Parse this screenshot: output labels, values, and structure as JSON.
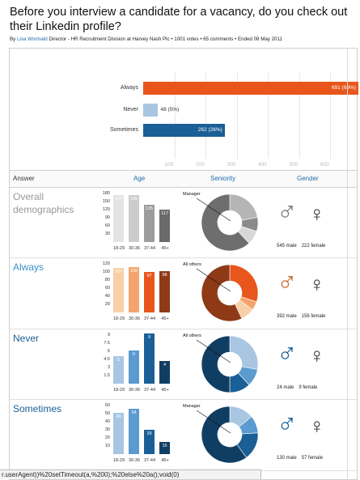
{
  "header": {
    "title": "Before you interview a candidate for a vacancy, do you check out their Linkedin profile?",
    "by": "By",
    "author": "Lisa Wormald",
    "role": "Director - HR Recruitment Division at Harvey Nash Plc",
    "votes": "1001 votes",
    "comments": "65 comments",
    "ended": "Ended 08 May 2011",
    "sep": "•"
  },
  "results": {
    "rows": [
      {
        "label": "Always",
        "votes": 691,
        "text": "691 (69%)",
        "color": "#e8561b"
      },
      {
        "label": "Never",
        "votes": 48,
        "text": "48 (5%)",
        "color": "#a8c6e2"
      },
      {
        "label": "Sometimes",
        "votes": 262,
        "text": "262 (26%)",
        "color": "#1a5f96"
      }
    ],
    "ticks": [
      "100",
      "200",
      "300",
      "400",
      "500",
      "600"
    ]
  },
  "columns": {
    "answer": "Answer",
    "age": "Age",
    "seniority": "Seniority",
    "gender": "Gender"
  },
  "sections": [
    {
      "title": "Overall demographics",
      "color": "#999999",
      "yticks": [
        "180",
        "150",
        "120",
        "90",
        "60",
        "30"
      ],
      "ymax": 180,
      "bars": [
        {
          "age": "18-29",
          "value": 167,
          "label": "167"
        },
        {
          "age": "30-36",
          "value": 168,
          "label": "168"
        },
        {
          "age": "37-44",
          "value": 135,
          "label": "135"
        },
        {
          "age": "45+",
          "value": 117,
          "label": "117"
        }
      ],
      "barColors": [
        "#e3e3e3",
        "#cccccc",
        "#9c9c9c",
        "#6a6a6a"
      ],
      "donutLabel": "Manager",
      "donut": [
        {
          "v": 22,
          "c": "#b5b5b5"
        },
        {
          "v": 8,
          "c": "#8a8a8a"
        },
        {
          "v": 8,
          "c": "#d8d8d8"
        },
        {
          "v": 62,
          "c": "#6e6e6e"
        }
      ],
      "genderColor": "#777777",
      "maleCount": "545 male",
      "femaleCount": "222 female"
    },
    {
      "title": "Always",
      "color": "#3a8fc7",
      "yticks": [
        "120",
        "100",
        "80",
        "60",
        "40",
        "20"
      ],
      "ymax": 120,
      "bars": [
        {
          "age": "18-29",
          "value": 107,
          "label": "107"
        },
        {
          "age": "30-36",
          "value": 108,
          "label": "108"
        },
        {
          "age": "37-44",
          "value": 97,
          "label": "97"
        },
        {
          "age": "45+",
          "value": 98,
          "label": "98"
        }
      ],
      "barColors": [
        "#f8cfa6",
        "#f4a46c",
        "#e8561b",
        "#8e3a17"
      ],
      "donutLabel": "All others",
      "donut": [
        {
          "v": 30,
          "c": "#e8561b"
        },
        {
          "v": 5,
          "c": "#f4a46c"
        },
        {
          "v": 8,
          "c": "#f8cfa6"
        },
        {
          "v": 57,
          "c": "#8e3a17"
        }
      ],
      "genderColor": "#c86a2e",
      "maleCount": "392 male",
      "femaleCount": "156 female"
    },
    {
      "title": "Never",
      "color": "#1a5f96",
      "yticks": [
        "9",
        "7.5",
        "6",
        "4.5",
        "3",
        "1.5"
      ],
      "ymax": 9,
      "bars": [
        {
          "age": "18-29",
          "value": 5,
          "label": "5"
        },
        {
          "age": "30-36",
          "value": 6,
          "label": "6"
        },
        {
          "age": "37-44",
          "value": 9,
          "label": "9"
        },
        {
          "age": "45+",
          "value": 4,
          "label": "4"
        }
      ],
      "barColors": [
        "#a8c6e2",
        "#5b9bd0",
        "#1a5f96",
        "#103e63"
      ],
      "donutLabel": "All others",
      "donut": [
        {
          "v": 28,
          "c": "#a8c6e2"
        },
        {
          "v": 10,
          "c": "#5b9bd0"
        },
        {
          "v": 12,
          "c": "#1a5f96"
        },
        {
          "v": 50,
          "c": "#103e63"
        }
      ],
      "genderColor": "#1a5f96",
      "maleCount": "24 male",
      "femaleCount": "9 female"
    },
    {
      "title": "Sometimes",
      "color": "#1a5f96",
      "yticks": [
        "60",
        "50",
        "40",
        "30",
        "20",
        "10"
      ],
      "ymax": 60,
      "bars": [
        {
          "age": "18-29",
          "value": 49,
          "label": "49"
        },
        {
          "age": "30-36",
          "value": 54,
          "label": "54"
        },
        {
          "age": "37-44",
          "value": 29,
          "label": "29"
        },
        {
          "age": "45+",
          "value": 15,
          "label": "15"
        }
      ],
      "barColors": [
        "#a8c6e2",
        "#5b9bd0",
        "#1a5f96",
        "#103e63"
      ],
      "donutLabel": "Manager",
      "donut": [
        {
          "v": 14,
          "c": "#a8c6e2"
        },
        {
          "v": 10,
          "c": "#5b9bd0"
        },
        {
          "v": 16,
          "c": "#1a5f96"
        },
        {
          "v": 60,
          "c": "#103e63"
        }
      ],
      "genderColor": "#1a5f96",
      "maleCount": "130 male",
      "femaleCount": "57 female"
    }
  ],
  "status": {
    "text": "r.userAgent))%20setTimeout(a,%200);%20else%20a();void(0)"
  }
}
